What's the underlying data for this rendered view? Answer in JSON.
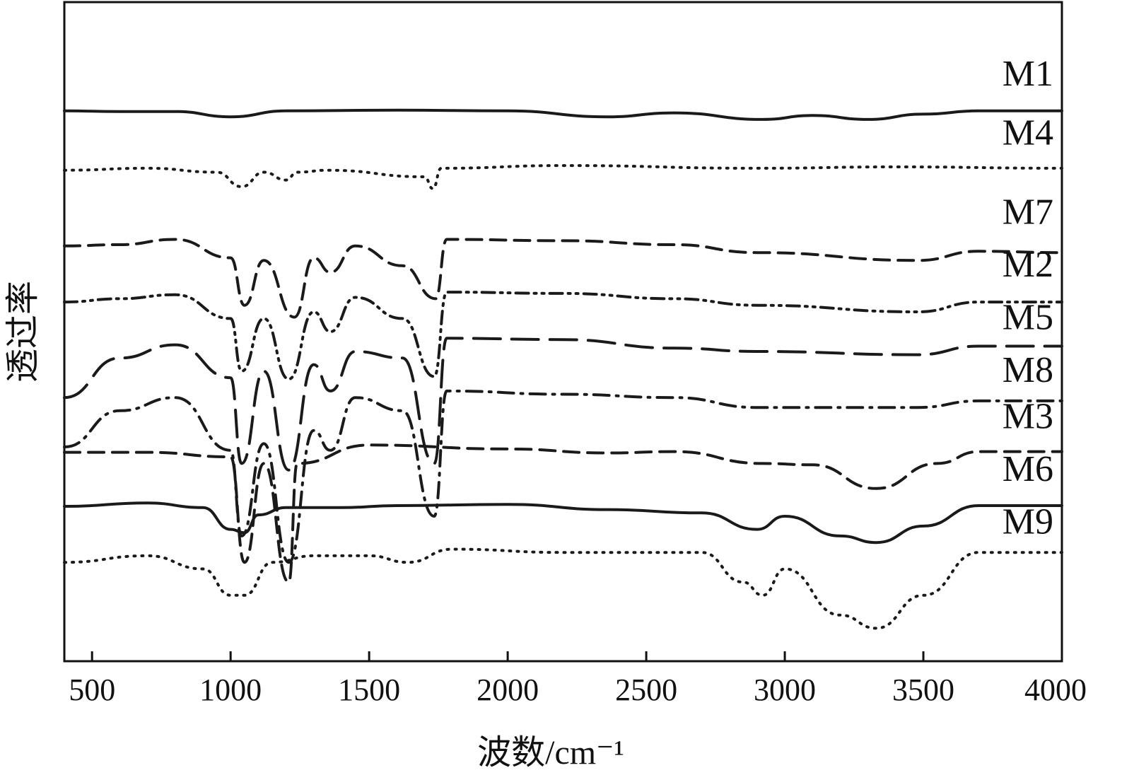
{
  "chart_data": {
    "type": "line",
    "xlabel": "波数/cm⁻¹",
    "ylabel": "透过率",
    "xlim": [
      400,
      4000
    ],
    "xticks": [
      500,
      1000,
      1500,
      2000,
      2500,
      3000,
      3500,
      4000
    ],
    "grid": false,
    "yticks_shown": false,
    "series": [
      {
        "name": "M1",
        "style": "solid",
        "baseline": 0.835,
        "x": [
          400,
          600,
          800,
          1000,
          1200,
          1600,
          2000,
          2360,
          2600,
          2920,
          3100,
          3300,
          3500,
          3700,
          4000
        ],
        "y": [
          0.835,
          0.834,
          0.834,
          0.826,
          0.835,
          0.836,
          0.835,
          0.826,
          0.832,
          0.822,
          0.828,
          0.822,
          0.83,
          0.835,
          0.835
        ]
      },
      {
        "name": "M4",
        "style": "dotted",
        "baseline": 0.745,
        "x": [
          400,
          700,
          950,
          1040,
          1120,
          1200,
          1240,
          1350,
          1700,
          1730,
          1760,
          2200,
          2900,
          3400,
          4000
        ],
        "y": [
          0.745,
          0.748,
          0.742,
          0.72,
          0.742,
          0.73,
          0.742,
          0.745,
          0.735,
          0.717,
          0.748,
          0.752,
          0.748,
          0.75,
          0.748
        ]
      },
      {
        "name": "M7",
        "style": "dashed",
        "baseline": 0.625,
        "x": [
          400,
          600,
          800,
          1000,
          1050,
          1120,
          1230,
          1300,
          1360,
          1450,
          1620,
          1740,
          1780,
          2200,
          2600,
          2900,
          3480,
          3700,
          4000
        ],
        "y": [
          0.63,
          0.632,
          0.64,
          0.612,
          0.54,
          0.608,
          0.522,
          0.612,
          0.59,
          0.63,
          0.6,
          0.55,
          0.64,
          0.638,
          0.632,
          0.62,
          0.608,
          0.622,
          0.62
        ]
      },
      {
        "name": "M2",
        "style": "dash-dot-dot",
        "baseline": 0.545,
        "x": [
          400,
          600,
          800,
          1000,
          1040,
          1120,
          1210,
          1300,
          1360,
          1450,
          1620,
          1735,
          1780,
          2200,
          2600,
          2900,
          3480,
          3700,
          4000
        ],
        "y": [
          0.545,
          0.55,
          0.556,
          0.52,
          0.44,
          0.52,
          0.428,
          0.53,
          0.5,
          0.552,
          0.52,
          0.432,
          0.56,
          0.558,
          0.55,
          0.54,
          0.53,
          0.545,
          0.545
        ]
      },
      {
        "name": "M5",
        "style": "long-dash",
        "baseline": 0.465,
        "x": [
          400,
          600,
          800,
          1000,
          1040,
          1120,
          1210,
          1300,
          1360,
          1450,
          1620,
          1735,
          1780,
          2200,
          2600,
          2900,
          3480,
          3700,
          4000
        ],
        "y": [
          0.4,
          0.46,
          0.48,
          0.43,
          0.3,
          0.44,
          0.29,
          0.45,
          0.41,
          0.47,
          0.46,
          0.3,
          0.49,
          0.488,
          0.475,
          0.47,
          0.465,
          0.478,
          0.478
        ]
      },
      {
        "name": "M8",
        "style": "dash-dot",
        "baseline": 0.385,
        "x": [
          400,
          600,
          800,
          1000,
          1040,
          1120,
          1210,
          1300,
          1360,
          1450,
          1620,
          1735,
          1780,
          2200,
          2600,
          2900,
          3480,
          3700,
          4000
        ],
        "y": [
          0.325,
          0.38,
          0.4,
          0.32,
          0.19,
          0.33,
          0.15,
          0.35,
          0.32,
          0.4,
          0.38,
          0.22,
          0.41,
          0.405,
          0.4,
          0.385,
          0.385,
          0.395,
          0.395
        ]
      },
      {
        "name": "M3",
        "style": "dashed",
        "baseline": 0.315,
        "x": [
          400,
          700,
          1000,
          1050,
          1120,
          1210,
          1240,
          1500,
          2000,
          2360,
          2600,
          2920,
          3100,
          3330,
          3550,
          3700,
          4000
        ],
        "y": [
          0.317,
          0.317,
          0.31,
          0.15,
          0.3,
          0.12,
          0.3,
          0.328,
          0.322,
          0.316,
          0.318,
          0.3,
          0.298,
          0.262,
          0.3,
          0.318,
          0.318
        ]
      },
      {
        "name": "M6",
        "style": "solid",
        "baseline": 0.235,
        "x": [
          400,
          700,
          900,
          1000,
          1050,
          1100,
          1200,
          1400,
          1600,
          2000,
          2360,
          2700,
          2900,
          3000,
          3200,
          3330,
          3500,
          3700,
          4000
        ],
        "y": [
          0.235,
          0.24,
          0.233,
          0.2,
          0.195,
          0.222,
          0.233,
          0.233,
          0.236,
          0.238,
          0.23,
          0.225,
          0.2,
          0.22,
          0.19,
          0.18,
          0.205,
          0.236,
          0.236
        ]
      },
      {
        "name": "M9",
        "style": "dotted",
        "baseline": 0.155,
        "x": [
          400,
          700,
          900,
          1000,
          1050,
          1150,
          1300,
          1500,
          1640,
          1800,
          2200,
          2700,
          2850,
          2920,
          3000,
          3200,
          3330,
          3500,
          3700,
          4000
        ],
        "y": [
          0.15,
          0.16,
          0.14,
          0.1,
          0.1,
          0.15,
          0.16,
          0.16,
          0.15,
          0.17,
          0.165,
          0.165,
          0.12,
          0.1,
          0.14,
          0.07,
          0.05,
          0.1,
          0.165,
          0.165
        ]
      }
    ]
  }
}
